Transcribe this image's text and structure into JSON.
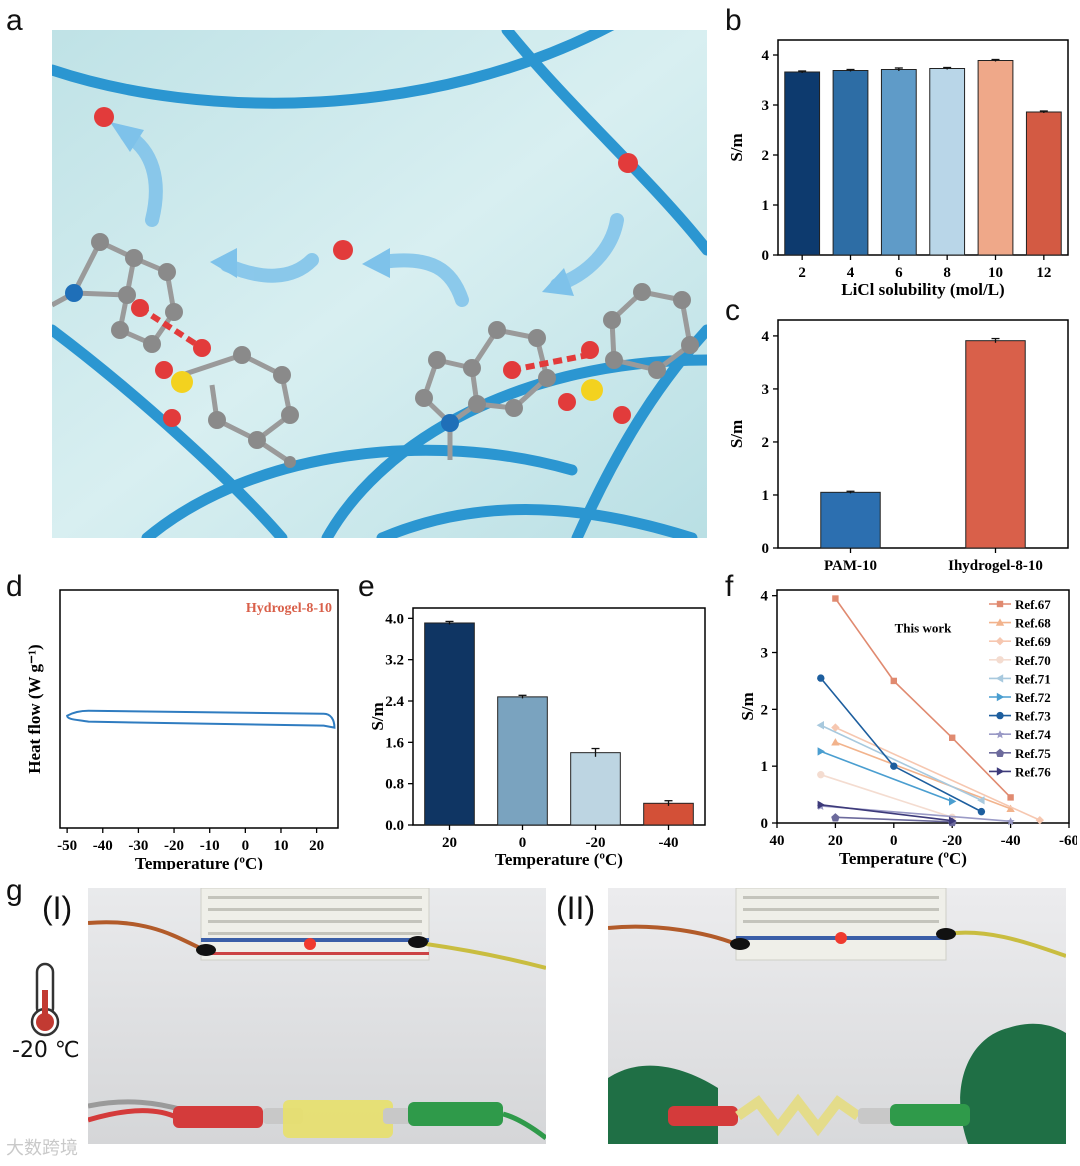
{
  "panel_labels": {
    "a": "a",
    "b": "b",
    "c": "c",
    "d": "d",
    "e": "e",
    "f": "f",
    "g": "g"
  },
  "colors": {
    "bg_cyan": "#cfe9ec",
    "chain_blue": "#2b96d1",
    "oxygen_red": "#e23b3b",
    "carbon_gray": "#8a8a8a",
    "sulfur_yellow": "#f3d21f",
    "nitrogen_blue": "#1f6fb8"
  },
  "chart_data": [
    {
      "id": "b",
      "type": "bar",
      "xlabel": "LiCl solubility (mol/L)",
      "ylabel": "S/m",
      "categories": [
        "2",
        "4",
        "6",
        "8",
        "10",
        "12"
      ],
      "values": [
        3.66,
        3.69,
        3.71,
        3.73,
        3.89,
        2.86
      ],
      "errors": [
        0.02,
        0.02,
        0.03,
        0.02,
        0.02,
        0.02
      ],
      "colors": [
        "#0d3a6e",
        "#2d6da5",
        "#5f9bc8",
        "#b9d6e8",
        "#efa889",
        "#d35a43"
      ],
      "ylim": [
        0,
        4.3
      ],
      "yticks": [
        "0",
        "1",
        "2",
        "3",
        "4"
      ]
    },
    {
      "id": "c",
      "type": "bar",
      "xlabel": "",
      "ylabel": "S/m",
      "categories": [
        "PAM-10",
        "Ihydrogel-8-10"
      ],
      "values": [
        1.05,
        3.91
      ],
      "errors": [
        0.02,
        0.04
      ],
      "colors": [
        "#2c6fb0",
        "#d9604a"
      ],
      "ylim": [
        0,
        4.3
      ],
      "yticks": [
        "0",
        "1",
        "2",
        "3",
        "4"
      ]
    },
    {
      "id": "d",
      "type": "line",
      "xlabel": "Temperature (ºC)",
      "ylabel": "Heat flow (W g⁻¹)",
      "legend": "Hydrogel-8-10",
      "xticks": [
        "-50",
        "-40",
        "-30",
        "-20",
        "-10",
        "0",
        "10",
        "20"
      ],
      "xlim": [
        -52,
        26
      ]
    },
    {
      "id": "e",
      "type": "bar",
      "xlabel": "Temperature (ºC)",
      "ylabel": "S/m",
      "categories": [
        "20",
        "0",
        "-20",
        "-40"
      ],
      "values": [
        3.91,
        2.48,
        1.4,
        0.42
      ],
      "errors": [
        0.03,
        0.03,
        0.08,
        0.05
      ],
      "colors": [
        "#0f3563",
        "#7aa3bf",
        "#bdd5e2",
        "#d35037"
      ],
      "ylim": [
        0,
        4.2
      ],
      "yticks": [
        "0.0",
        "0.8",
        "1.6",
        "2.4",
        "3.2",
        "4.0"
      ]
    },
    {
      "id": "f",
      "type": "line",
      "xlabel": "Temperature (ºC)",
      "ylabel": "S/m",
      "annotation": "This work",
      "xlim": [
        40,
        -60
      ],
      "ylim": [
        0,
        4.1
      ],
      "xticks": [
        "40",
        "20",
        "0",
        "-20",
        "-40",
        "-60"
      ],
      "yticks": [
        "0",
        "1",
        "2",
        "3",
        "4"
      ],
      "series": [
        {
          "name": "Ref.67",
          "color": "#e08a70",
          "marker": "square",
          "x": [
            20,
            0,
            -20,
            -40
          ],
          "y": [
            3.95,
            2.5,
            1.5,
            0.45
          ]
        },
        {
          "name": "Ref.68",
          "color": "#f2b38c",
          "marker": "triangle",
          "x": [
            20,
            -40
          ],
          "y": [
            1.42,
            0.25
          ]
        },
        {
          "name": "Ref.69",
          "color": "#f6c7b0",
          "marker": "diamond",
          "x": [
            20,
            -50
          ],
          "y": [
            1.68,
            0.05
          ]
        },
        {
          "name": "Ref.70",
          "color": "#f4dcd0",
          "marker": "circle",
          "x": [
            25,
            -20
          ],
          "y": [
            0.85,
            0.1
          ]
        },
        {
          "name": "Ref.71",
          "color": "#a8c9de",
          "marker": "triangle-left",
          "x": [
            25,
            -30
          ],
          "y": [
            1.72,
            0.4
          ]
        },
        {
          "name": "Ref.72",
          "color": "#4a9ed0",
          "marker": "triangle-right",
          "x": [
            25,
            -20
          ],
          "y": [
            1.26,
            0.38
          ]
        },
        {
          "name": "Ref.73",
          "color": "#1d5e9e",
          "marker": "circle",
          "x": [
            25,
            0,
            -30
          ],
          "y": [
            2.55,
            1.0,
            0.2
          ]
        },
        {
          "name": "Ref.74",
          "color": "#9a9ac6",
          "marker": "star",
          "x": [
            25,
            -40
          ],
          "y": [
            0.3,
            0.03
          ]
        },
        {
          "name": "Ref.75",
          "color": "#6c6a9c",
          "marker": "pentagon",
          "x": [
            20,
            -20
          ],
          "y": [
            0.1,
            0.02
          ]
        },
        {
          "name": "Ref.76",
          "color": "#3d3a7a",
          "marker": "triangle-right",
          "x": [
            25,
            -20
          ],
          "y": [
            0.32,
            0.04
          ]
        }
      ]
    }
  ],
  "photos": {
    "label_i": "(I)",
    "label_ii": "(II)",
    "temperature": "-20 ℃"
  },
  "watermark": "大数跨境"
}
